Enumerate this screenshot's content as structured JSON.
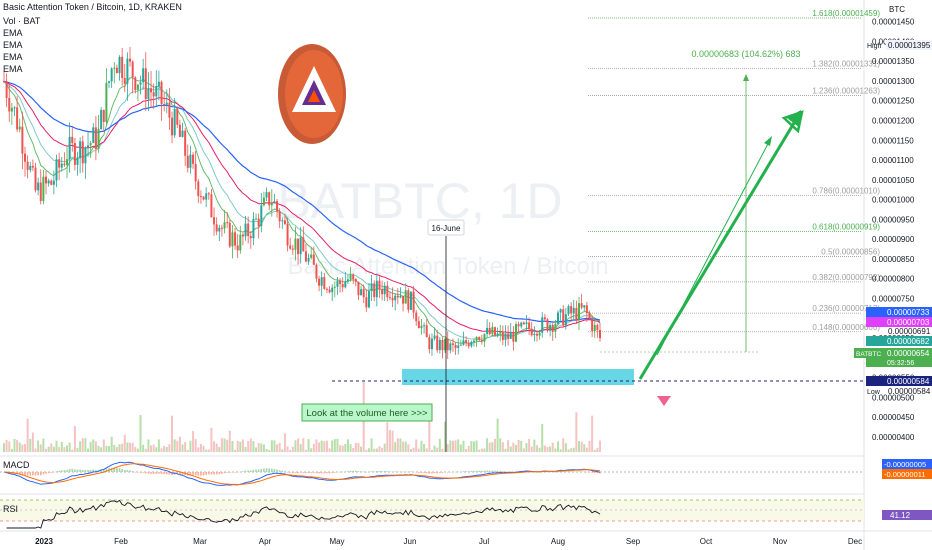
{
  "header": {
    "title": "Basic Attention Token / Bitcoin, 1D, KRAKEN",
    "indicators": [
      "Vol · BAT",
      "EMA",
      "EMA",
      "EMA",
      "EMA"
    ]
  },
  "watermark": {
    "symbol": "BATBTC, 1D",
    "name": "Basic Attention Token / Bitcoin"
  },
  "price_axis": {
    "currency": "BTC",
    "ticks": [
      "0.00001450",
      "0.00001400",
      "0.00001350",
      "0.00001300",
      "0.00001250",
      "0.00001200",
      "0.00001150",
      "0.00001100",
      "0.00001050",
      "0.00001000",
      "0.00000950",
      "0.00000900",
      "0.00000850",
      "0.00000800",
      "0.00000750",
      "0.00000700",
      "0.00000650",
      "0.00000600",
      "0.00000550",
      "0.00000500",
      "0.00000450",
      "0.00000400"
    ],
    "high_label": "High",
    "high_value": "0.00001395",
    "low_label": "Low",
    "low_value": "0.00000584",
    "ema_blue": "0.00000733",
    "ema_pink": "0.00000703",
    "ema_grey": "0.00000691",
    "ema_green": "0.00000682",
    "last_symbol": "BATBTC",
    "last_value": "0.00000654",
    "countdown": "05:32:56",
    "support_value": "0.00000584"
  },
  "fib_levels": [
    {
      "label": "1.618(0.00001459)",
      "color": "#4caf50"
    },
    {
      "label": "1.382(0.00001331)",
      "color": "#9e9e9e"
    },
    {
      "label": "1.236(0.00001263)",
      "color": "#9e9e9e"
    },
    {
      "label": "0.786(0.00001010)",
      "color": "#9e9e9e"
    },
    {
      "label": "0.618(0.00000919)",
      "color": "#4caf50"
    },
    {
      "label": "0.5(0.00000856)",
      "color": "#9e9e9e"
    },
    {
      "label": "0.382(0.00000792)",
      "color": "#9e9e9e"
    },
    {
      "label": "0.236(0.00000713)",
      "color": "#9e9e9e"
    },
    {
      "label": "0.148(0.00000666)",
      "color": "#9e9e9e"
    }
  ],
  "annotations": {
    "measure": "0.00000683 (104.62%) 683",
    "june_label": "16-June",
    "volume_note": "Look at the volume here >>>"
  },
  "macd": {
    "label": "MACD",
    "value1": "-0.00000005",
    "value2": "-0.00000011"
  },
  "rsi": {
    "label": "RSI",
    "value": "41.12"
  },
  "time_axis": {
    "labels": [
      "2023",
      "Feb",
      "Mar",
      "Apr",
      "May",
      "Jun",
      "Jul",
      "Aug",
      "Sep",
      "Oct",
      "Nov",
      "Dec"
    ]
  },
  "colors": {
    "up": "#26a69a",
    "up_green": "#4caf50",
    "down": "#ef5350",
    "ema_blue": "#2962ff",
    "ema_pink": "#e91e63",
    "ema_teal": "#80cbc4",
    "ema_green": "#66bb6a",
    "support_box": "#4dd0e1",
    "arrow": "#22b14c",
    "logo": "#e4673a"
  },
  "chart_data": {
    "type": "candlestick",
    "x": [
      "2023-01-01",
      "2023-01-07",
      "2023-01-13",
      "2023-01-19",
      "2023-01-25",
      "2023-01-31",
      "2023-02-06",
      "2023-02-12",
      "2023-02-18",
      "2023-02-24",
      "2023-03-02",
      "2023-03-08",
      "2023-03-14",
      "2023-03-20",
      "2023-03-26",
      "2023-04-01",
      "2023-04-07",
      "2023-04-13",
      "2023-04-19",
      "2023-04-25",
      "2023-05-01",
      "2023-05-07",
      "2023-05-13",
      "2023-05-19",
      "2023-05-25",
      "2023-05-31",
      "2023-06-06",
      "2023-06-12",
      "2023-06-18",
      "2023-06-24",
      "2023-06-30",
      "2023-07-06",
      "2023-07-12",
      "2023-07-18",
      "2023-07-24",
      "2023-07-30",
      "2023-08-05",
      "2023-08-11",
      "2023-08-17"
    ],
    "close": [
      1.3e-05,
      1.18e-05,
      1.02e-05,
      1.04e-05,
      1.12e-05,
      1.13e-05,
      1.16e-05,
      1.36e-05,
      1.33e-05,
      1.29e-05,
      1.25e-05,
      1.18e-05,
      1.07e-05,
      9.9e-06,
      9.2e-06,
      8.9e-06,
      9.4e-06,
      1.01e-05,
      9.2e-06,
      8.7e-06,
      8.1e-06,
      7.8e-06,
      8e-06,
      7.5e-06,
      7.8e-06,
      7.7e-06,
      7.4e-06,
      6.4e-06,
      6.3e-06,
      6.2e-06,
      6.6e-06,
      6.6e-06,
      6.5e-06,
      6.7e-06,
      6.8e-06,
      6.9e-06,
      7.1e-06,
      7.2e-06,
      6.5e-06
    ],
    "ylim": [
      4e-06,
      1.48e-05
    ],
    "support": 5.84e-06,
    "recent_high": 7.4e-06,
    "fib_prices": [
      1.459e-05,
      1.331e-05,
      1.263e-05,
      1.01e-05,
      9.19e-06,
      8.56e-06,
      7.92e-06,
      7.13e-06,
      6.66e-06
    ]
  }
}
